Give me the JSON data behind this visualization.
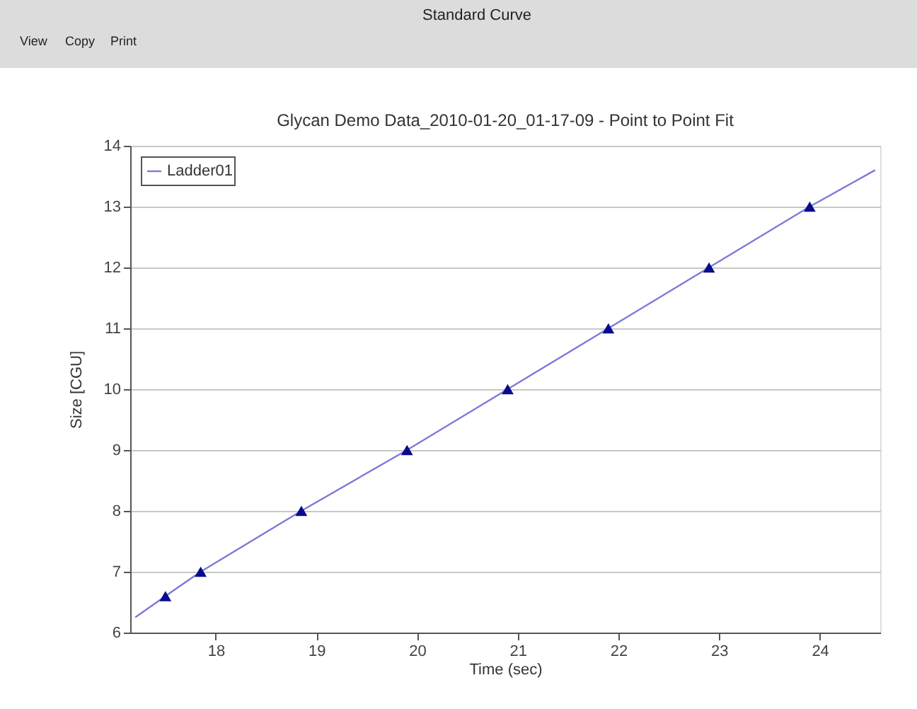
{
  "chart_data": {
    "type": "line",
    "title": "Glycan Demo Data_2010-01-20_01-17-09 - Point to Point Fit",
    "xlabel": "Time (sec)",
    "ylabel": "Size [CGU]",
    "annotations": [
      "Standard Curve",
      "View",
      "Copy",
      "Print"
    ],
    "series": [
      {
        "name": "Ladder01",
        "type": "line",
        "color": "#7b7bd6",
        "marker": "none",
        "line_style": "solid",
        "x": [
          17.2,
          17.5,
          17.85,
          18.85,
          19.9,
          20.9,
          21.9,
          22.9,
          23.9,
          24.55
        ],
        "values": [
          6.25,
          6.6,
          7,
          8,
          9,
          10,
          11,
          12,
          13,
          13.6
        ]
      },
      {
        "type": "scatter",
        "color": "#0a0a8c",
        "marker": "triangle",
        "x": [
          17.5,
          17.85,
          18.85,
          19.9,
          20.9,
          21.9,
          22.9,
          23.9
        ],
        "values": [
          6.6,
          7,
          8,
          9,
          10,
          11,
          12,
          13
        ]
      }
    ],
    "xlim": [
      17.15,
      24.6
    ],
    "ylim": [
      6,
      14
    ],
    "xticks": [
      18,
      19,
      20,
      21,
      22,
      23,
      24
    ],
    "yticks": [
      6,
      7,
      8,
      9,
      10,
      11,
      12,
      13,
      14
    ],
    "grid": "y",
    "legend": "top left"
  }
}
